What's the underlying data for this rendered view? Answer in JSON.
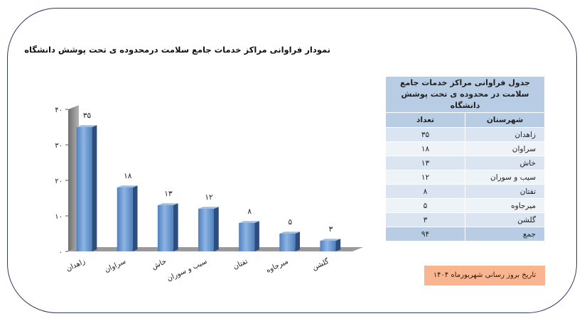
{
  "chart_data": {
    "type": "bar",
    "title": "نمودار فراوانی مراکز خدمات جامع سلامت درمحدوده ی تحت پوشش دانشگاه",
    "categories": [
      "زاهدان",
      "سراوان",
      "خاش",
      "سیب و سوران",
      "تفتان",
      "میرجاوه",
      "گلشن"
    ],
    "values": [
      35,
      18,
      13,
      12,
      8,
      5,
      3
    ],
    "data_labels": [
      "۳۵",
      "۱۸",
      "۱۳",
      "۱۲",
      "۸",
      "۵",
      "۳"
    ],
    "yticks": [
      0,
      10,
      20,
      30,
      40
    ],
    "ytick_labels": [
      "۰",
      "۱۰",
      "۲۰",
      "۳۰",
      "۴۰"
    ],
    "ylim": [
      0,
      40
    ],
    "xlabel": "",
    "ylabel": "",
    "colors": {
      "bar_front": "#4f81bd",
      "bar_light": "#8eb4e3",
      "bar_side": "#2c4d7d",
      "bar_top": "#9cbde6",
      "wall": "#8c8c8c",
      "floor": "#9a9a9a"
    }
  },
  "table": {
    "title": "جدول فراوانی مراکز خدمات جامع سلامت در محدوده ی تحت پوشش دانشگاه",
    "headers": {
      "city": "شهرستان",
      "count": "تعداد"
    },
    "rows": [
      {
        "city": "زاهدان",
        "count": "۳۵"
      },
      {
        "city": "سراوان",
        "count": "۱۸"
      },
      {
        "city": "خاش",
        "count": "۱۳"
      },
      {
        "city": "سیب و سوران",
        "count": "۱۲"
      },
      {
        "city": "تفتان",
        "count": "۸"
      },
      {
        "city": "میرجاوه",
        "count": "۵"
      },
      {
        "city": "گلشن",
        "count": "۳"
      }
    ],
    "total": {
      "city": "جمع",
      "count": "۹۴"
    }
  },
  "note": "تاریخ بروز رسانی شهریورماه ۱۴۰۴"
}
